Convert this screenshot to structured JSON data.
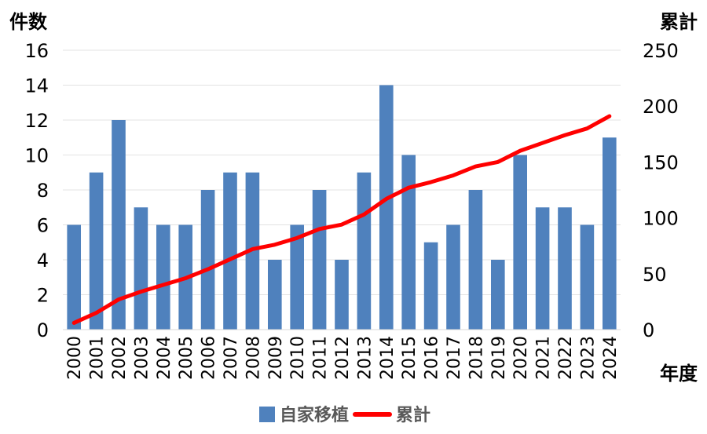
{
  "chart_data": {
    "type": "bar",
    "y_left_label": "件数",
    "y_right_label": "累計",
    "x_label": "年度",
    "categories": [
      "2000",
      "2001",
      "2002",
      "2003",
      "2004",
      "2005",
      "2006",
      "2007",
      "2008",
      "2009",
      "2010",
      "2011",
      "2012",
      "2013",
      "2014",
      "2015",
      "2016",
      "2017",
      "2018",
      "2019",
      "2020",
      "2021",
      "2022",
      "2023",
      "2024"
    ],
    "y_left_ticks": [
      "0",
      "2",
      "4",
      "6",
      "8",
      "10",
      "12",
      "14",
      "16"
    ],
    "y_right_ticks": [
      "0",
      "50",
      "100",
      "150",
      "200",
      "250"
    ],
    "y_left_lim": [
      0,
      16
    ],
    "y_right_lim": [
      0,
      250
    ],
    "grid": true,
    "legend_position": "bottom",
    "series": [
      {
        "name": "自家移植",
        "type": "bar",
        "axis": "left",
        "color": "#4F81BD",
        "values": [
          6,
          9,
          12,
          7,
          6,
          6,
          8,
          9,
          9,
          4,
          6,
          8,
          4,
          9,
          14,
          10,
          5,
          6,
          8,
          4,
          10,
          7,
          7,
          6,
          11
        ]
      },
      {
        "name": "累計",
        "type": "line",
        "axis": "right",
        "color": "#FF0000",
        "values": [
          6,
          15,
          27,
          34,
          40,
          46,
          54,
          63,
          72,
          76,
          82,
          90,
          94,
          103,
          117,
          127,
          132,
          138,
          146,
          150,
          160,
          167,
          174,
          180,
          191
        ]
      }
    ]
  }
}
